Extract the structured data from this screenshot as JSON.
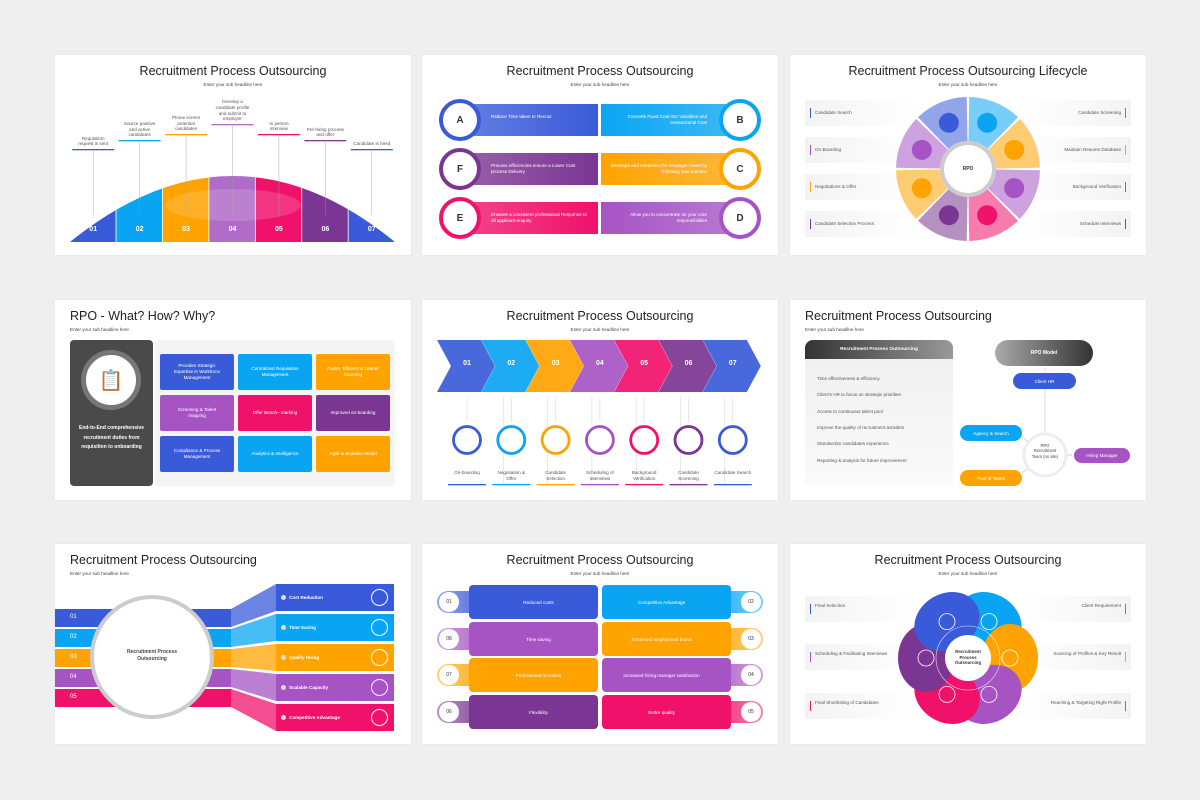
{
  "colors": {
    "blue": "#3a5bd9",
    "cyan": "#0aa5f2",
    "orange": "#ffa300",
    "purple": "#a654c4",
    "pink": "#f0116b",
    "darkpurple": "#7b3592",
    "dark": "#4a4a4a"
  },
  "subtitle": "Enter your sub headline here",
  "slides": [
    {
      "title": "Recruitment Process Outsourcing",
      "steps": [
        {
          "num": "01",
          "label": "Requisition request is sent",
          "color": "#3a5bd9"
        },
        {
          "num": "02",
          "label": "Source passive and active candidates",
          "color": "#0aa5f2"
        },
        {
          "num": "03",
          "label": "Phone screen potential candidates",
          "color": "#ffa300"
        },
        {
          "num": "04",
          "label": "Develop a candidate profile and submit to employer",
          "color": "#b06cc8"
        },
        {
          "num": "05",
          "label": "In person interview",
          "color": "#f0116b"
        },
        {
          "num": "06",
          "label": "Pre-hiring process and offer",
          "color": "#7b3592"
        },
        {
          "num": "07",
          "label": "Candidate is hired",
          "color": "#3a5bd9"
        }
      ]
    },
    {
      "title": "Recruitment Process Outsourcing",
      "items": [
        {
          "letter": "A",
          "text": "Reduce Time taken to Recruit",
          "color": "#3a5bd9",
          "side": "left"
        },
        {
          "letter": "B",
          "text": "Converts Fixed Cost into Variables and transactional Cost",
          "color": "#0aa5f2",
          "side": "right"
        },
        {
          "letter": "F",
          "text": "Process efficiencies ensure a Lower Cost process Delivery",
          "color": "#7b3592",
          "side": "left"
        },
        {
          "letter": "C",
          "text": "Develops and enhances the employer brand by following best practice",
          "color": "#ffa300",
          "side": "right"
        },
        {
          "letter": "E",
          "text": "Ensures a consistent professional Response to all applicant enquiry",
          "color": "#f0116b",
          "side": "left"
        },
        {
          "letter": "D",
          "text": "Allow you to concentrate on your core responsibilities",
          "color": "#a654c4",
          "side": "right"
        }
      ]
    },
    {
      "title": "Recruitment Process Outsourcing Lifecycle",
      "center": "RPO",
      "left": [
        {
          "text": "Candidate Search",
          "color": "#3a5bd9"
        },
        {
          "text": "On-Boarding",
          "color": "#a654c4"
        },
        {
          "text": "Negotiations & Offer",
          "color": "#ffa300"
        },
        {
          "text": "Candidate Selection Process",
          "color": "#7b3592"
        }
      ],
      "right": [
        {
          "text": "Candidate Screening",
          "color": "#0aa5f2"
        },
        {
          "text": "Maintain Resume Database",
          "color": "#ffa300"
        },
        {
          "text": "Background Verification",
          "color": "#a654c4"
        },
        {
          "text": "Schedule Interviews",
          "color": "#f0116b"
        }
      ],
      "segments": [
        "#0aa5f2",
        "#ffa300",
        "#a654c4",
        "#f0116b",
        "#7b3592",
        "#ffa300",
        "#a654c4",
        "#3a5bd9"
      ]
    },
    {
      "title": "RPO - What? How? Why?",
      "panel": "End-to-End comprehensive recruitment duties from requisition to onboarding",
      "icon": "clipboard-strategy-icon",
      "grid": [
        {
          "text": "Provides Strategic Expertise in Workforce Management",
          "color": "#3a5bd9"
        },
        {
          "text": "Centralized Requisition Management",
          "color": "#0aa5f2"
        },
        {
          "text": "Faster, Efficient & Leaner Sourcing",
          "color": "#ffa300"
        },
        {
          "text": "Screening & Talent mapping",
          "color": "#a654c4"
        },
        {
          "text": "Offer Bench– marking",
          "color": "#f0116b"
        },
        {
          "text": "Improved on-boarding",
          "color": "#7b3592"
        },
        {
          "text": "Compliance & Process Management",
          "color": "#3a5bd9"
        },
        {
          "text": "Analytics & Intelligence",
          "color": "#0aa5f2"
        },
        {
          "text": "Agile & Scalable Model",
          "color": "#ffa300"
        }
      ]
    },
    {
      "title": "Recruitment Process Outsourcing",
      "steps": [
        {
          "num": "01",
          "label": "On-boarding",
          "color": "#3a5bd9"
        },
        {
          "num": "02",
          "label": "Negotiation & Offer",
          "color": "#0aa5f2"
        },
        {
          "num": "03",
          "label": "Candidate Selection",
          "color": "#ffa300"
        },
        {
          "num": "04",
          "label": "Scheduling of Interviews",
          "color": "#a654c4"
        },
        {
          "num": "05",
          "label": "Background Verification",
          "color": "#f0116b"
        },
        {
          "num": "06",
          "label": "Candidate Screening",
          "color": "#7b3592"
        },
        {
          "num": "07",
          "label": "Candidate Search",
          "color": "#3a5bd9"
        }
      ]
    },
    {
      "title": "Recruitment Process Outsourcing",
      "card_header": "Recruitment Process Outsourcing",
      "bullets": [
        "Time effectiveness & efficiency",
        "Client's HR to focus on strategic priorities",
        "Access to continuous talent pool",
        "Improve the quality of recruitment activities",
        "Standardize candidates experience",
        "Reporting & analysis for future improvement"
      ],
      "model": "RPO Model",
      "client": "Client HR",
      "team": "RPO Recruitment Team (on site)",
      "agency": "Agency & Search",
      "hiring": "Hiring Manager",
      "pool": "Pool of Talent"
    },
    {
      "title": "Recruitment Process Outsourcing",
      "center": "Recruitment Process Outsourcing",
      "bands": [
        "01",
        "02",
        "03",
        "04",
        "05"
      ],
      "boxes": [
        {
          "text": "Cost Reduction",
          "color": "#3a5bd9",
          "icon": "money-icon"
        },
        {
          "text": "Time Saving",
          "color": "#0aa5f2",
          "icon": "clock-24-icon"
        },
        {
          "text": "Quality Hiring",
          "color": "#ffa300",
          "icon": "thumbs-up-badge-icon"
        },
        {
          "text": "Scalable Capacity",
          "color": "#a654c4",
          "icon": "idea-head-icon"
        },
        {
          "text": "Competitive Advantage",
          "color": "#f0116b",
          "icon": "growth-chart-icon"
        }
      ]
    },
    {
      "title": "Recruitment Process Outsourcing",
      "left": [
        {
          "num": "01",
          "text": "Reduced costs",
          "color": "#3a5bd9"
        },
        {
          "num": "08",
          "text": "Time saving",
          "color": "#a654c4"
        },
        {
          "num": "07",
          "text": "Professional recruiters",
          "color": "#ffa300"
        },
        {
          "num": "06",
          "text": "Flexibility",
          "color": "#7b3592"
        }
      ],
      "right": [
        {
          "num": "02",
          "text": "Competitive Advantage",
          "color": "#0aa5f2"
        },
        {
          "num": "03",
          "text": "Enhanced employment brand",
          "color": "#ffa300"
        },
        {
          "num": "04",
          "text": "Increased hiring manager satisfaction",
          "color": "#a654c4"
        },
        {
          "num": "05",
          "text": "Better quality",
          "color": "#f0116b"
        }
      ]
    },
    {
      "title": "Recruitment Process Outsourcing",
      "center": "Recruitment Process Outsourcing",
      "left": [
        {
          "text": "Final Selection",
          "color": "#3a5bd9"
        },
        {
          "text": "Scheduling & Facilitating Interviews",
          "color": "#a654c4"
        },
        {
          "text": "Final Shortlisting of Candidates",
          "color": "#f0116b"
        }
      ],
      "right": [
        {
          "text": "Client Requirement",
          "color": "#0aa5f2"
        },
        {
          "text": "Sourcing of Profiles & Key Result",
          "color": "#ffa300"
        },
        {
          "text": "Reaching & Targeting Right Profile",
          "color": "#a654c4"
        }
      ],
      "petals": [
        "#0aa5f2",
        "#ffa300",
        "#a654c4",
        "#f0116b",
        "#7b3592",
        "#3a5bd9"
      ]
    }
  ]
}
